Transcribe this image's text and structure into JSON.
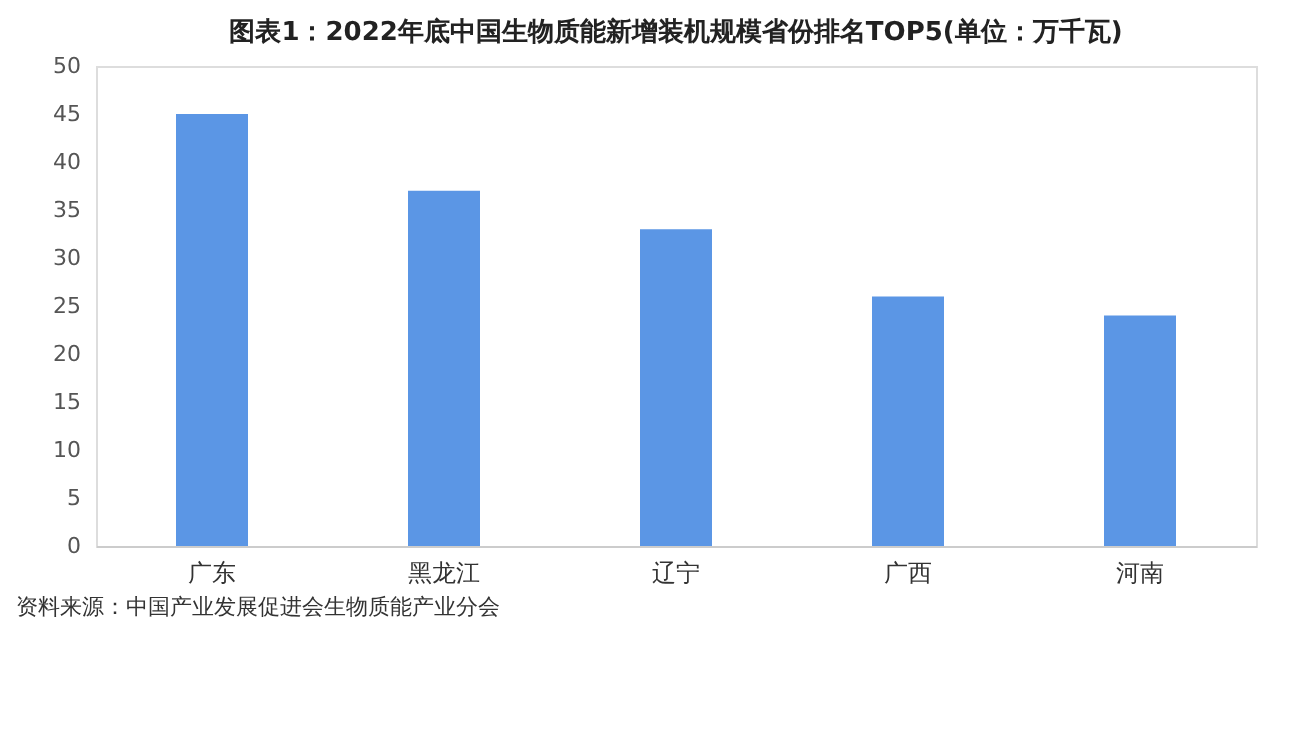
{
  "chart_data": {
    "type": "bar",
    "title": "图表1：2022年底中国生物质能新增装机规模省份排名TOP5(单位：万千瓦)",
    "categories": [
      "广东",
      "黑龙江",
      "辽宁",
      "广西",
      "河南"
    ],
    "values": [
      45,
      37,
      33,
      26,
      24
    ],
    "color": "#5b96e5",
    "ylim": [
      0,
      50
    ],
    "yticks": [
      0,
      5,
      10,
      15,
      20,
      25,
      30,
      35,
      40,
      45,
      50
    ],
    "grid": false,
    "annotations": [
      "资料来源：中国产业发展促进会生物质能产业分会"
    ]
  }
}
